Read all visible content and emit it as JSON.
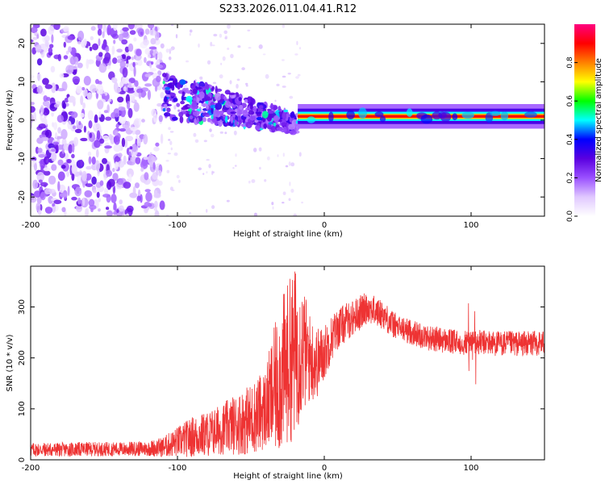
{
  "chart_data": [
    {
      "type": "heatmap",
      "title": "S233.2026.011.04.41.R12",
      "xlabel": "Height of straight line (km)",
      "ylabel": "Frequency (Hz)",
      "xlim": [
        -200,
        150
      ],
      "ylim": [
        -25,
        25
      ],
      "x_ticks": [
        -200,
        -100,
        0,
        100
      ],
      "y_ticks": [
        -20,
        -10,
        0,
        10,
        20
      ],
      "x_tick_labels": [
        "-200",
        "-100",
        "0",
        "100"
      ],
      "y_tick_labels": [
        "-20",
        "-10",
        "0",
        "10",
        "20"
      ],
      "colorbar": {
        "label": "Normalized spectral amplitude",
        "range": [
          0,
          1
        ],
        "ticks": [
          0.0,
          0.2,
          0.4,
          0.6,
          0.8
        ],
        "tick_labels": [
          "0.0",
          "0.2",
          "0.4",
          "0.6",
          "0.8"
        ],
        "colors": [
          "#ffffff",
          "#e0c8ff",
          "#9a50ff",
          "#5a00e0",
          "#0000ff",
          "#00ffff",
          "#00ff00",
          "#ffff00",
          "#ff8000",
          "#ff0000",
          "#ff0080"
        ]
      },
      "regions": [
        {
          "name": "noise",
          "x_range": [
            -200,
            -110
          ],
          "y_range": [
            -25,
            25
          ],
          "amplitude": 0.12
        },
        {
          "name": "transition",
          "x_range": [
            -110,
            -18
          ],
          "y_range": [
            -5,
            12
          ],
          "amplitude": 0.3
        },
        {
          "name": "tone",
          "x_range": [
            -18,
            150
          ],
          "frequency": 1,
          "amplitude": 0.9
        }
      ]
    },
    {
      "type": "line",
      "xlabel": "Height of straight line (km)",
      "ylabel": "SNR (10 * v/v)",
      "xlim": [
        -200,
        150
      ],
      "ylim": [
        0,
        380
      ],
      "x_ticks": [
        -200,
        -100,
        0,
        100
      ],
      "y_ticks": [
        0,
        100,
        200,
        300
      ],
      "x_tick_labels": [
        "-200",
        "-100",
        "0",
        "100"
      ],
      "y_tick_labels": [
        "0",
        "100",
        "200",
        "300"
      ],
      "series": [
        {
          "name": "SNR",
          "color": "#ee3333",
          "x": [
            -200,
            -180,
            -160,
            -140,
            -120,
            -110,
            -100,
            -90,
            -80,
            -70,
            -60,
            -50,
            -40,
            -35,
            -30,
            -25,
            -20,
            -15,
            -10,
            -5,
            0,
            5,
            10,
            15,
            20,
            25,
            30,
            35,
            40,
            45,
            50,
            60,
            70,
            80,
            90,
            100,
            110,
            120,
            130,
            140,
            150
          ],
          "values": [
            20,
            20,
            21,
            21,
            22,
            25,
            35,
            45,
            50,
            60,
            70,
            80,
            100,
            130,
            160,
            190,
            210,
            220,
            200,
            190,
            210,
            240,
            260,
            270,
            280,
            290,
            300,
            290,
            285,
            270,
            260,
            250,
            240,
            235,
            230,
            230,
            230,
            228,
            228,
            228,
            230
          ],
          "noise": [
            14,
            14,
            14,
            14,
            15,
            20,
            30,
            40,
            45,
            50,
            60,
            70,
            80,
            120,
            150,
            160,
            170,
            130,
            90,
            70,
            55,
            45,
            40,
            38,
            35,
            35,
            30,
            30,
            28,
            28,
            25,
            25,
            25,
            25,
            25,
            25,
            25,
            25,
            25,
            25,
            25
          ]
        }
      ]
    }
  ]
}
